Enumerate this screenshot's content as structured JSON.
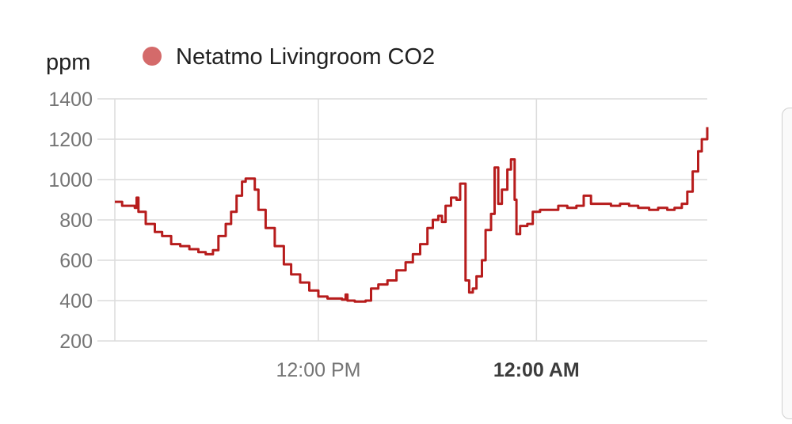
{
  "chart_data": {
    "type": "line",
    "ylabel": "ppm",
    "ylim": [
      200,
      1400
    ],
    "yticks": [
      "1400",
      "1200",
      "1000",
      "800",
      "600",
      "400",
      "200"
    ],
    "xticks": [
      {
        "label": "12:00 PM",
        "hour": 6,
        "bold": false
      },
      {
        "label": "12:00 AM",
        "hour": 18,
        "bold": true
      }
    ],
    "x_range_hours": [
      -5.2,
      27.4
    ],
    "legend_position": "top",
    "grid": true,
    "series": [
      {
        "name": "Netatmo Livingroom CO2",
        "color": "#b71c1c",
        "legend_color": "#d46a6a",
        "points": [
          [
            -5.2,
            890
          ],
          [
            -4.8,
            870
          ],
          [
            -4.1,
            860
          ],
          [
            -4.0,
            910
          ],
          [
            -3.9,
            840
          ],
          [
            -3.5,
            780
          ],
          [
            -3.0,
            740
          ],
          [
            -2.6,
            720
          ],
          [
            -2.1,
            680
          ],
          [
            -1.6,
            670
          ],
          [
            -1.1,
            655
          ],
          [
            -0.6,
            640
          ],
          [
            -0.2,
            630
          ],
          [
            0.2,
            650
          ],
          [
            0.5,
            720
          ],
          [
            0.9,
            780
          ],
          [
            1.2,
            840
          ],
          [
            1.5,
            920
          ],
          [
            1.8,
            990
          ],
          [
            2.0,
            1005
          ],
          [
            2.3,
            1005
          ],
          [
            2.5,
            950
          ],
          [
            2.7,
            850
          ],
          [
            3.1,
            760
          ],
          [
            3.6,
            670
          ],
          [
            4.1,
            580
          ],
          [
            4.5,
            530
          ],
          [
            5.0,
            490
          ],
          [
            5.5,
            450
          ],
          [
            6.0,
            420
          ],
          [
            6.5,
            410
          ],
          [
            7.0,
            410
          ],
          [
            7.3,
            405
          ],
          [
            7.5,
            430
          ],
          [
            7.6,
            400
          ],
          [
            8.0,
            395
          ],
          [
            8.6,
            400
          ],
          [
            8.9,
            460
          ],
          [
            9.3,
            480
          ],
          [
            9.8,
            500
          ],
          [
            10.3,
            550
          ],
          [
            10.8,
            590
          ],
          [
            11.2,
            630
          ],
          [
            11.6,
            680
          ],
          [
            12.0,
            760
          ],
          [
            12.3,
            800
          ],
          [
            12.6,
            820
          ],
          [
            12.8,
            790
          ],
          [
            13.0,
            870
          ],
          [
            13.3,
            910
          ],
          [
            13.6,
            900
          ],
          [
            13.8,
            980
          ],
          [
            14.0,
            980
          ],
          [
            14.1,
            500
          ],
          [
            14.3,
            440
          ],
          [
            14.5,
            460
          ],
          [
            14.7,
            520
          ],
          [
            15.0,
            600
          ],
          [
            15.2,
            750
          ],
          [
            15.5,
            830
          ],
          [
            15.7,
            1060
          ],
          [
            15.9,
            880
          ],
          [
            16.1,
            950
          ],
          [
            16.4,
            1050
          ],
          [
            16.6,
            1100
          ],
          [
            16.8,
            900
          ],
          [
            16.9,
            730
          ],
          [
            17.1,
            770
          ],
          [
            17.5,
            780
          ],
          [
            17.8,
            840
          ],
          [
            18.2,
            850
          ],
          [
            18.7,
            850
          ],
          [
            19.2,
            870
          ],
          [
            19.7,
            860
          ],
          [
            20.2,
            870
          ],
          [
            20.6,
            920
          ],
          [
            21.0,
            880
          ],
          [
            21.6,
            880
          ],
          [
            22.1,
            870
          ],
          [
            22.6,
            880
          ],
          [
            23.1,
            870
          ],
          [
            23.6,
            860
          ],
          [
            24.2,
            850
          ],
          [
            24.7,
            860
          ],
          [
            25.2,
            850
          ],
          [
            25.6,
            860
          ],
          [
            26.0,
            880
          ],
          [
            26.3,
            940
          ],
          [
            26.6,
            1040
          ],
          [
            26.9,
            1140
          ],
          [
            27.1,
            1200
          ],
          [
            27.4,
            1260
          ]
        ]
      }
    ]
  }
}
